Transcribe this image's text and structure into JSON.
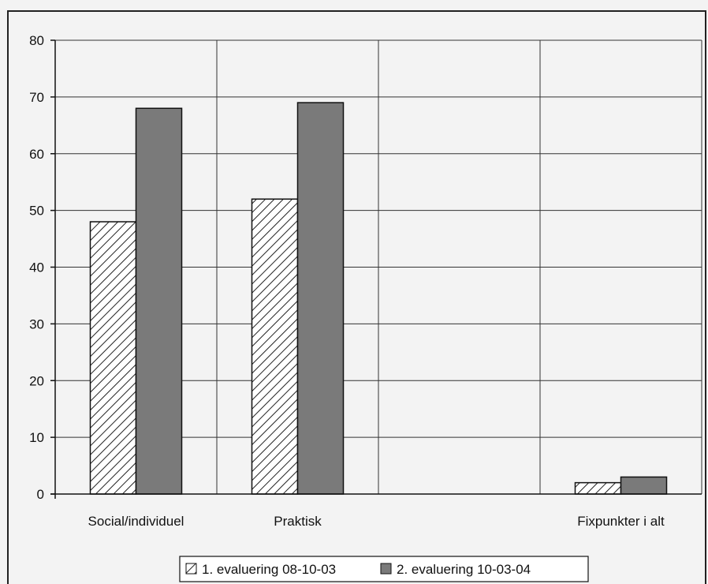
{
  "chart_data": {
    "type": "bar",
    "title": "",
    "xlabel": "",
    "ylabel": "",
    "categories": [
      "Social/individuel",
      "Praktisk",
      "",
      "Fixpunkter i alt"
    ],
    "series": [
      {
        "name": "1. evaluering 08-10-03",
        "values": [
          48,
          52,
          null,
          2
        ],
        "pattern": "diagonal-hatch",
        "color": "#ffffff"
      },
      {
        "name": "2. evaluering 10-03-04",
        "values": [
          68,
          69,
          null,
          3
        ],
        "pattern": "solid",
        "color": "#7a7a7a"
      }
    ],
    "ylim": [
      0,
      80
    ],
    "yticks": [
      0,
      10,
      20,
      30,
      40,
      50,
      60,
      70,
      80
    ],
    "grid": true,
    "legend_position": "bottom-center"
  }
}
